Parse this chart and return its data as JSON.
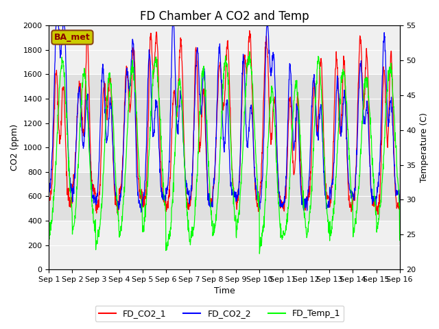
{
  "title": "FD Chamber A CO2 and Temp",
  "xlabel": "Time",
  "ylabel_left": "CO2 (ppm)",
  "ylabel_right": "Temperature (C)",
  "ylim_left": [
    0,
    2000
  ],
  "ylim_right": [
    20,
    55
  ],
  "xlim": [
    0,
    15
  ],
  "xtick_positions": [
    0,
    1,
    2,
    3,
    4,
    5,
    6,
    7,
    8,
    9,
    10,
    11,
    12,
    13,
    14,
    15
  ],
  "xtick_labels": [
    "Sep 1",
    "Sep 2",
    "Sep 3",
    "Sep 4",
    "Sep 5",
    "Sep 6",
    "Sep 7",
    "Sep 8",
    "Sep 9",
    "Sep 10",
    "Sep 11",
    "Sep 12",
    "Sep 13",
    "Sep 14",
    "Sep 15",
    "Sep 16"
  ],
  "yticks_left": [
    0,
    200,
    400,
    600,
    800,
    1000,
    1200,
    1400,
    1600,
    1800,
    2000
  ],
  "yticks_right": [
    20,
    25,
    30,
    35,
    40,
    45,
    50,
    55
  ],
  "color_co2_1": "red",
  "color_co2_2": "blue",
  "color_temp": "lime",
  "legend_labels": [
    "FD_CO2_1",
    "FD_CO2_2",
    "FD_Temp_1"
  ],
  "annotation_text": "BA_met",
  "annotation_bg": "#CCCC00",
  "annotation_border": "#8B4513",
  "bg_color": "#E8E8E8",
  "band_colors": [
    "#F0F0F0",
    "#E0E0E0"
  ],
  "title_fontsize": 12,
  "axis_fontsize": 9,
  "tick_fontsize": 8,
  "linewidth": 0.9
}
